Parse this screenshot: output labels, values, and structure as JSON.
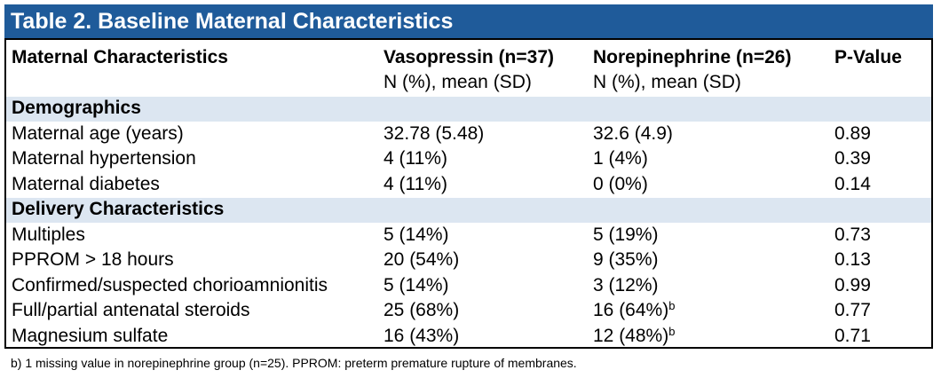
{
  "title": "Table 2. Baseline Maternal Characteristics",
  "header": {
    "col1": "Maternal Characteristics",
    "col2": "Vasopressin (n=37)",
    "col2_sub": "N (%), mean (SD)",
    "col3": "Norepinephrine (n=26)",
    "col3_sub": "N (%), mean (SD)",
    "col4": "P-Value"
  },
  "sections": [
    {
      "label": "Demographics",
      "rows": [
        {
          "name": "Maternal age (years)",
          "vaso": "32.78 (5.48)",
          "norepi": "32.6 (4.9)",
          "p": "0.89"
        },
        {
          "name": "Maternal hypertension",
          "vaso": "4 (11%)",
          "norepi": "1 (4%)",
          "p": "0.39"
        },
        {
          "name": "Maternal diabetes",
          "vaso": "4 (11%)",
          "norepi": "0 (0%)",
          "p": "0.14"
        }
      ]
    },
    {
      "label": "Delivery Characteristics",
      "rows": [
        {
          "name": "Multiples",
          "vaso": "5 (14%)",
          "norepi": "5 (19%)",
          "p": "0.73"
        },
        {
          "name": "PPROM > 18 hours",
          "vaso": "20 (54%)",
          "norepi": "9 (35%)",
          "p": "0.13"
        },
        {
          "name": "Confirmed/suspected chorioamnionitis",
          "vaso": "5 (14%)",
          "norepi": "3 (12%)",
          "p": "0.99"
        },
        {
          "name": "Full/partial antenatal steroids",
          "vaso": "25 (68%)",
          "norepi": "16 (64%)",
          "norepi_sup": "b",
          "p": "0.77"
        },
        {
          "name": "Magnesium sulfate",
          "vaso": "16 (43%)",
          "norepi": "12 (48%)",
          "norepi_sup": "b",
          "p": "0.71"
        }
      ]
    }
  ],
  "footnote": "b)  1 missing value in norepinephrine group (n=25). PPROM: preterm premature rupture of membranes."
}
